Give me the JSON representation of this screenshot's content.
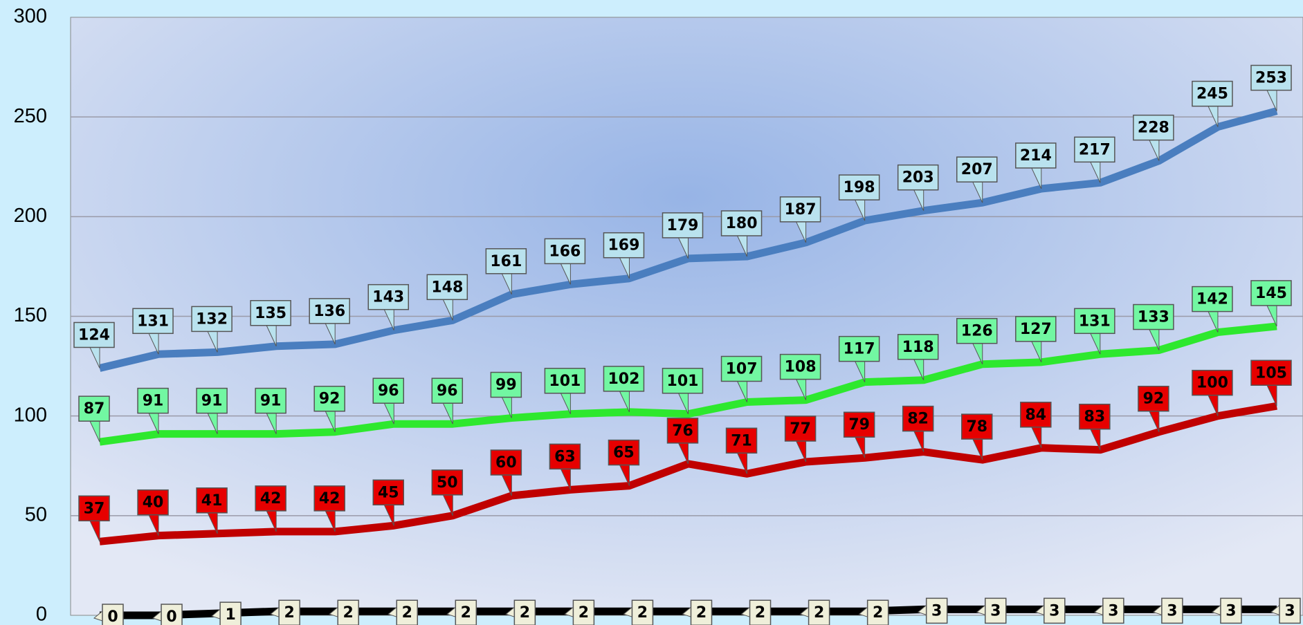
{
  "chart_data": {
    "type": "line",
    "categories": [
      null,
      null,
      null,
      null,
      null,
      null,
      null,
      null,
      null,
      null,
      null,
      null,
      null,
      null,
      null,
      null,
      null,
      null,
      null,
      null,
      null
    ],
    "ylim": [
      0,
      300
    ],
    "yticks": [
      0,
      50,
      100,
      150,
      200,
      250,
      300
    ],
    "grid": true,
    "series": [
      {
        "color": "#4a7ebf",
        "label_color": "#b9e2ee",
        "values": [
          124,
          131,
          132,
          135,
          136,
          143,
          148,
          161,
          166,
          169,
          179,
          180,
          187,
          198,
          203,
          207,
          214,
          217,
          228,
          245,
          253
        ]
      },
      {
        "color": "#2ee82e",
        "label_color": "#72f7a2",
        "values": [
          87,
          91,
          91,
          91,
          92,
          96,
          96,
          99,
          101,
          102,
          101,
          107,
          108,
          117,
          118,
          126,
          127,
          131,
          133,
          142,
          145
        ]
      },
      {
        "color": "#c00000",
        "label_color": "#e60000",
        "values": [
          37,
          40,
          41,
          42,
          42,
          45,
          50,
          60,
          63,
          65,
          76,
          71,
          77,
          79,
          82,
          78,
          84,
          83,
          92,
          100,
          105
        ]
      },
      {
        "color": "#000000",
        "label_color": "#efefda",
        "values": [
          0,
          0,
          1,
          2,
          2,
          2,
          2,
          2,
          2,
          2,
          2,
          2,
          2,
          2,
          3,
          3,
          3,
          3,
          3,
          3,
          3
        ]
      }
    ]
  }
}
